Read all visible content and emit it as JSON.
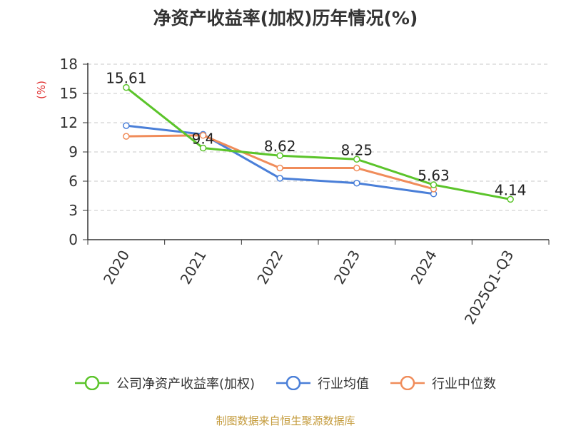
{
  "chart_data": {
    "type": "line",
    "title": "净资产收益率(加权)历年情况(%)",
    "ylabel": "(%)",
    "xlabel": "",
    "ylim": [
      0,
      18
    ],
    "yticks": [
      0,
      3,
      6,
      9,
      12,
      15,
      18
    ],
    "grid": "horizontal dashed",
    "categories": [
      "2020",
      "2021",
      "2022",
      "2023",
      "2024",
      "2025Q1-Q3"
    ],
    "series": [
      {
        "name": "公司净资产收益率(加权)",
        "color": "#5bc42a",
        "values": [
          15.61,
          9.4,
          8.62,
          8.25,
          5.63,
          4.14
        ],
        "labels": [
          "15.61",
          "9.4",
          "8.62",
          "8.25",
          "5.63",
          "4.14"
        ]
      },
      {
        "name": "行业均值",
        "color": "#4a7fd8",
        "values": [
          11.7,
          10.8,
          6.3,
          5.8,
          4.7,
          null
        ]
      },
      {
        "name": "行业中位数",
        "color": "#f08c5a",
        "values": [
          10.6,
          10.7,
          7.35,
          7.35,
          5.2,
          null
        ]
      }
    ],
    "legend_position": "bottom"
  },
  "source": "制图数据来自恒生聚源数据库"
}
